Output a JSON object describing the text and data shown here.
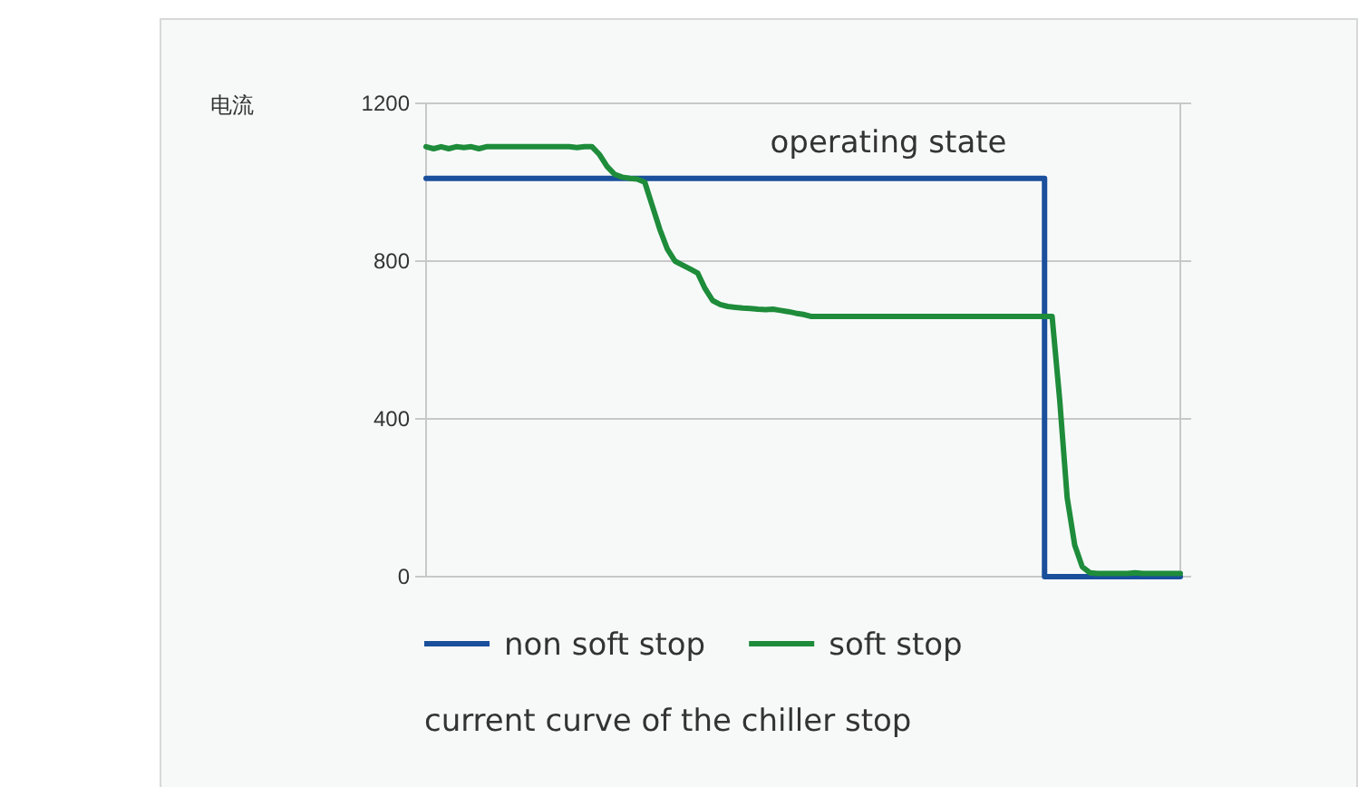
{
  "chart_data": {
    "type": "line",
    "title": "current curve of the chiller stop",
    "ylabel": "电流",
    "annotations": [
      "operating state"
    ],
    "categories": [
      null,
      null,
      null,
      null,
      null,
      null,
      null,
      null,
      null,
      null,
      null,
      null,
      null,
      null,
      null,
      null,
      null,
      null,
      null,
      null,
      null,
      null,
      null,
      null,
      null,
      null,
      null,
      null,
      null,
      null,
      null,
      null,
      null,
      null,
      null,
      null,
      null,
      null,
      null,
      null,
      null,
      null,
      null,
      null,
      null,
      null,
      null,
      null,
      null,
      null,
      null,
      null,
      null,
      null,
      null,
      null,
      null,
      null,
      null,
      null,
      null,
      null,
      null,
      null,
      null,
      null,
      null,
      null,
      null,
      null,
      null,
      null,
      null,
      null,
      null,
      null,
      null,
      null,
      null,
      null,
      null,
      null,
      null,
      null,
      null,
      null,
      null,
      null,
      null,
      null,
      null,
      null,
      null,
      null,
      null,
      null,
      null,
      null,
      null,
      null,
      null
    ],
    "series": [
      {
        "name": "non soft stop",
        "type": "step",
        "color": "#1a4f9c",
        "values": [
          1010,
          1010,
          1010,
          1010,
          1010,
          1010,
          1010,
          1010,
          1010,
          1010,
          1010,
          1010,
          1010,
          1010,
          1010,
          1010,
          1010,
          1010,
          1010,
          1010,
          1010,
          1010,
          1010,
          1010,
          1010,
          1010,
          1010,
          1010,
          1010,
          1010,
          1010,
          1010,
          1010,
          1010,
          1010,
          1010,
          1010,
          1010,
          1010,
          1010,
          1010,
          1010,
          1010,
          1010,
          1010,
          1010,
          1010,
          1010,
          1010,
          1010,
          1010,
          1010,
          1010,
          1010,
          1010,
          1010,
          1010,
          1010,
          1010,
          1010,
          1010,
          1010,
          1010,
          1010,
          1010,
          1010,
          1010,
          1010,
          1010,
          1010,
          1010,
          1010,
          1010,
          1010,
          1010,
          1010,
          1010,
          1010,
          1010,
          1010,
          1010,
          1010,
          0,
          0,
          0,
          0,
          0,
          0,
          0,
          0,
          0,
          0,
          0,
          0,
          0,
          0,
          0,
          0,
          0,
          0,
          0
        ]
      },
      {
        "name": "soft stop",
        "type": "line",
        "color": "#1e8c3a",
        "values": [
          1090,
          1085,
          1090,
          1085,
          1090,
          1088,
          1090,
          1085,
          1090,
          1090,
          1090,
          1090,
          1090,
          1090,
          1090,
          1090,
          1090,
          1090,
          1090,
          1090,
          1088,
          1090,
          1090,
          1070,
          1040,
          1020,
          1013,
          1010,
          1008,
          1000,
          940,
          880,
          830,
          800,
          790,
          780,
          770,
          730,
          700,
          690,
          685,
          683,
          681,
          680,
          678,
          677,
          678,
          675,
          672,
          668,
          665,
          660,
          660,
          660,
          660,
          660,
          660,
          660,
          660,
          660,
          660,
          660,
          660,
          660,
          660,
          660,
          660,
          660,
          660,
          660,
          660,
          660,
          660,
          660,
          660,
          660,
          660,
          660,
          660,
          660,
          660,
          660,
          660,
          660,
          450,
          200,
          80,
          25,
          10,
          8,
          8,
          8,
          8,
          8,
          10,
          8,
          8,
          8,
          8,
          8,
          8
        ]
      }
    ],
    "ylim": [
      0,
      1200
    ],
    "yticks": [
      0,
      400,
      800,
      1200
    ],
    "grid": "y",
    "legend": "bottom"
  }
}
